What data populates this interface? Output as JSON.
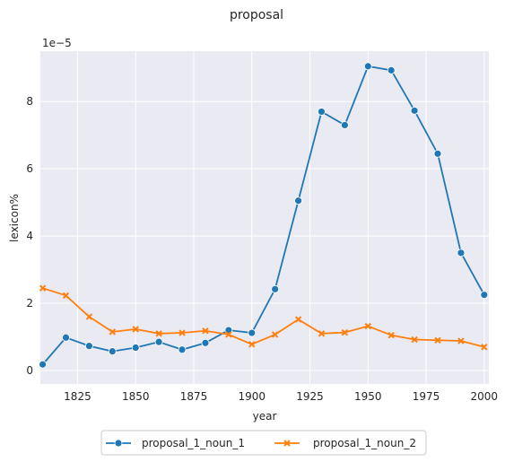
{
  "chart_data": {
    "type": "line",
    "title": "proposal",
    "xlabel": "year",
    "ylabel": "lexicon%",
    "y_scale_label": "1e−5",
    "xlim": [
      1809,
      2002
    ],
    "ylim": [
      -0.4,
      9.5
    ],
    "xticks": [
      1825,
      1850,
      1875,
      1900,
      1925,
      1950,
      1975,
      2000
    ],
    "yticks": [
      0,
      2,
      4,
      6,
      8
    ],
    "x": [
      1810,
      1820,
      1830,
      1840,
      1850,
      1860,
      1870,
      1880,
      1890,
      1900,
      1910,
      1920,
      1930,
      1940,
      1950,
      1960,
      1970,
      1980,
      1990,
      2000
    ],
    "series": [
      {
        "name": "proposal_1_noun_1",
        "color": "#1f77b4",
        "marker": "circle",
        "values": [
          0.18,
          0.98,
          0.73,
          0.57,
          0.68,
          0.85,
          0.62,
          0.82,
          1.2,
          1.12,
          2.42,
          5.05,
          7.7,
          7.3,
          9.05,
          8.93,
          7.73,
          6.45,
          3.5,
          2.25
        ]
      },
      {
        "name": "proposal_1_noun_2",
        "color": "#ff7f0e",
        "marker": "x",
        "values": [
          2.45,
          2.23,
          1.6,
          1.15,
          1.23,
          1.1,
          1.12,
          1.18,
          1.07,
          0.78,
          1.07,
          1.52,
          1.1,
          1.13,
          1.32,
          1.05,
          0.92,
          0.9,
          0.88,
          0.7
        ]
      }
    ],
    "grid": true,
    "legend_position": "bottom-center"
  }
}
